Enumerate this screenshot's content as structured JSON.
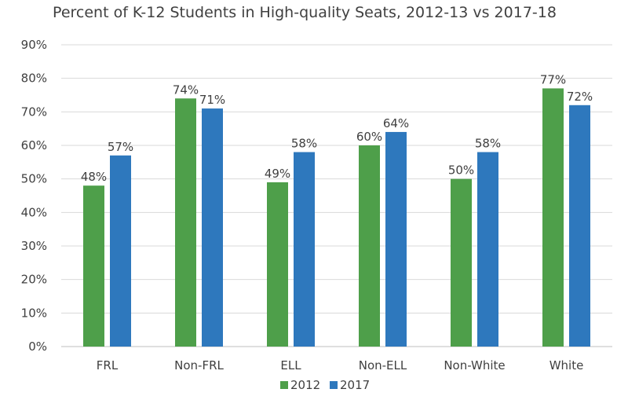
{
  "chart_data": {
    "type": "bar",
    "title": "Percent of K-12  Students in High-quality Seats, 2012-13 vs 2017-18",
    "categories": [
      "FRL",
      "Non-FRL",
      "ELL",
      "Non-ELL",
      "Non-White",
      "White"
    ],
    "series": [
      {
        "name": "2012",
        "color": "#4e9f4a",
        "values": [
          48,
          74,
          49,
          60,
          50,
          77
        ],
        "labels": [
          "48%",
          "74%",
          "49%",
          "60%",
          "50%",
          "77%"
        ]
      },
      {
        "name": "2017",
        "color": "#2e78bd",
        "values": [
          57,
          71,
          58,
          64,
          58,
          72
        ],
        "labels": [
          "57%",
          "71%",
          "58%",
          "64%",
          "58%",
          "72%"
        ]
      }
    ],
    "ylim": [
      0,
      90
    ],
    "yticks": [
      0,
      10,
      20,
      30,
      40,
      50,
      60,
      70,
      80,
      90
    ],
    "ytick_labels": [
      "0%",
      "10%",
      "20%",
      "30%",
      "40%",
      "50%",
      "60%",
      "70%",
      "80%",
      "90%"
    ],
    "xlabel": "",
    "ylabel": "",
    "grid": true,
    "legend_position": "bottom-center"
  }
}
